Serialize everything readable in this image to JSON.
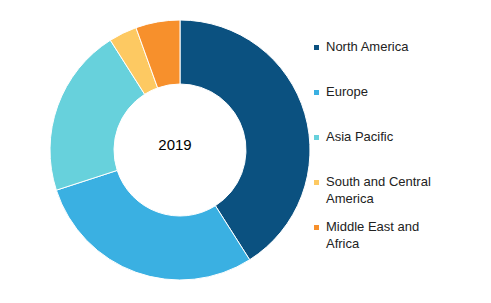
{
  "chart_data": {
    "type": "pie",
    "title": "2019",
    "categories": [
      "North America",
      "Europe",
      "Asia Pacific",
      "South and Central America",
      "Middle East and Africa"
    ],
    "values": [
      41,
      29,
      21,
      3.5,
      5.5
    ],
    "colors": [
      "#0b5180",
      "#3ab0e2",
      "#67d1dc",
      "#fdc962",
      "#f7902c"
    ],
    "legend": "right"
  }
}
